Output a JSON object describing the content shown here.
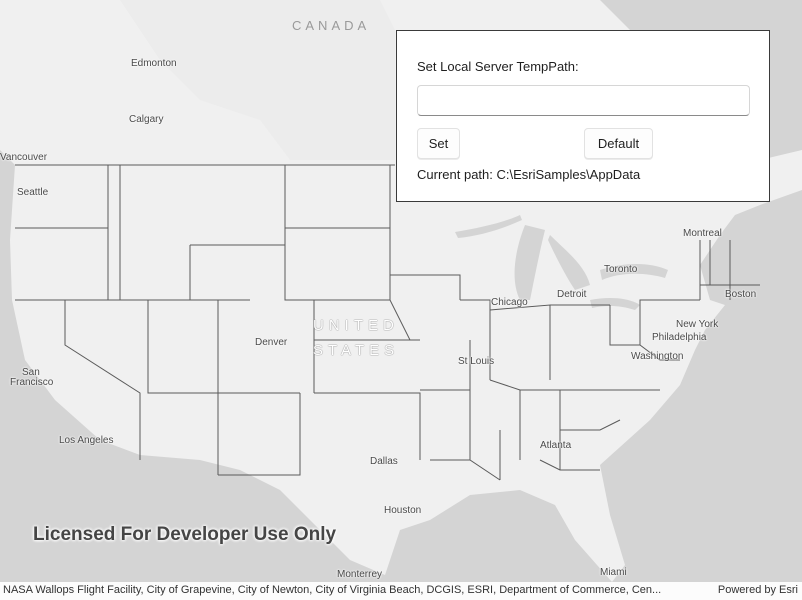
{
  "map": {
    "countries": {
      "canada": "CANADA",
      "united": "UNITED",
      "states": "STATES"
    },
    "cities": {
      "edmonton": "Edmonton",
      "calgary": "Calgary",
      "vancouver": "Vancouver",
      "seattle": "Seattle",
      "san_francisco_1": "San",
      "san_francisco_2": "Francisco",
      "los_angeles": "Los Angeles",
      "denver": "Denver",
      "dallas": "Dallas",
      "houston": "Houston",
      "monterrey": "Monterrey",
      "chicago": "Chicago",
      "detroit": "Detroit",
      "toronto": "Toronto",
      "montreal": "Montreal",
      "boston": "Boston",
      "new_york": "New York",
      "philadelphia": "Philadelphia",
      "washington": "Washington",
      "st_louis": "St Louis",
      "atlanta": "Atlanta",
      "miami": "Miami"
    },
    "watermark": "Licensed For Developer Use Only",
    "colors": {
      "land": "#f0f0f0",
      "water": "#d4d4d4",
      "borders": "#5a5a5a"
    }
  },
  "panel": {
    "label": "Set Local Server TempPath:",
    "input_value": "",
    "set_label": "Set",
    "default_label": "Default",
    "current_path": "Current path: C:\\EsriSamples\\AppData"
  },
  "attribution": {
    "text": "NASA Wallops Flight Facility, City of Grapevine, City of Newton, City of Virginia Beach, DCGIS, ESRI, Department of Commerce, Cen...",
    "powered": "Powered by Esri"
  }
}
